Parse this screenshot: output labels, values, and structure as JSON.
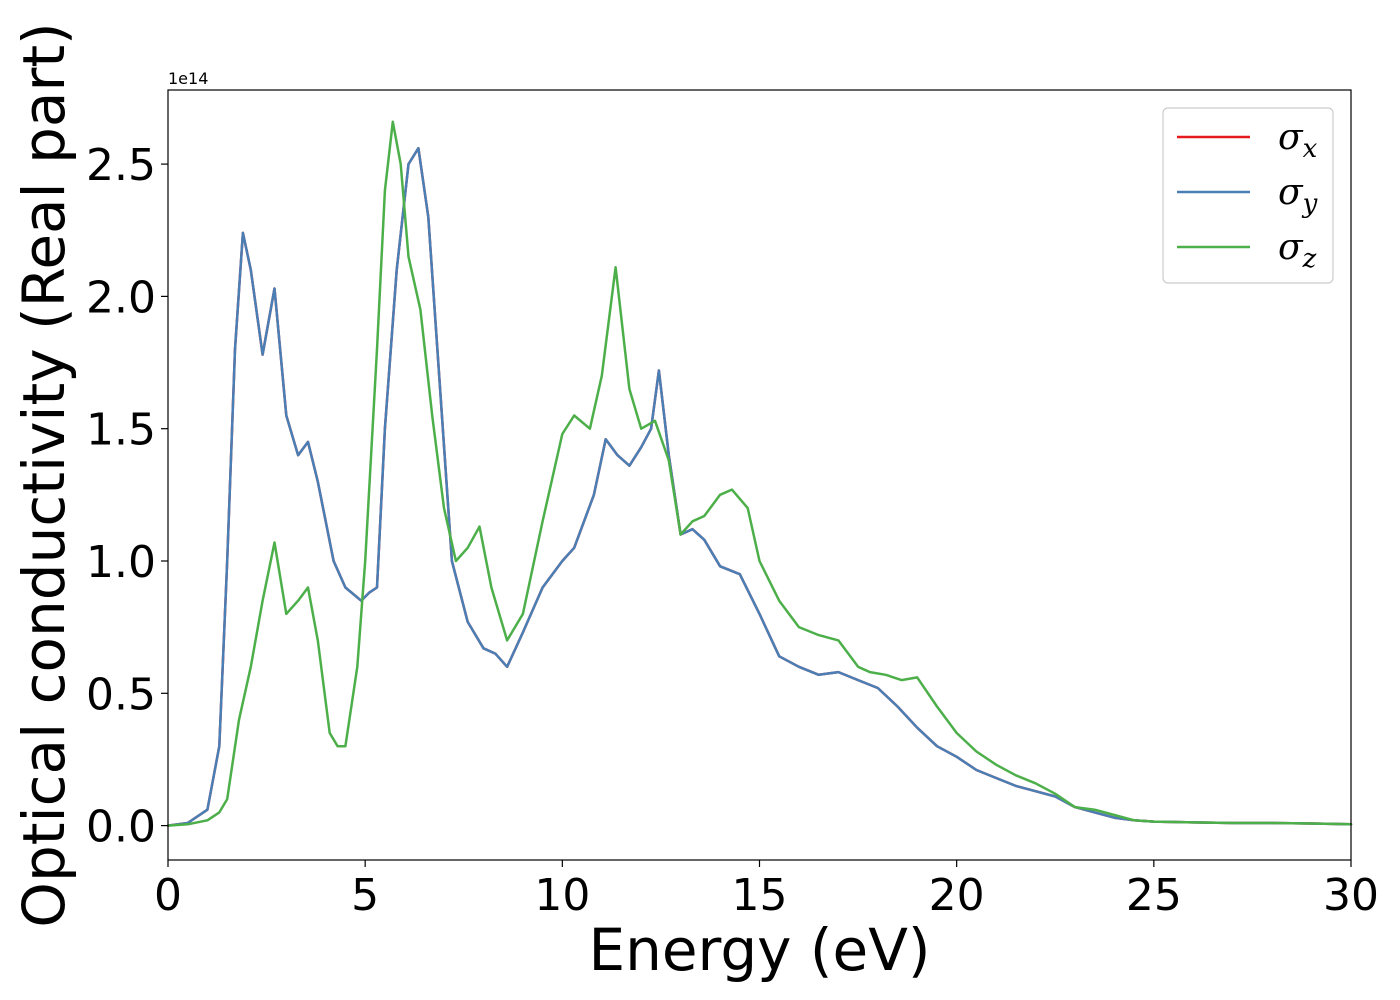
{
  "chart_data": {
    "type": "line",
    "xlabel": "Energy (eV)",
    "ylabel": "Optical conductivity (Real part)",
    "y_offset_label": "1e14",
    "xlim": [
      0,
      30
    ],
    "ylim": [
      -0.13,
      2.78
    ],
    "xticks": [
      0,
      5,
      10,
      15,
      20,
      25,
      30
    ],
    "xtick_labels": [
      "0",
      "5",
      "10",
      "15",
      "20",
      "25",
      "30"
    ],
    "yticks": [
      0.0,
      0.5,
      1.0,
      1.5,
      2.0,
      2.5
    ],
    "ytick_labels": [
      "0.0",
      "0.5",
      "1.0",
      "1.5",
      "2.0",
      "2.5"
    ],
    "grid": false,
    "legend_position": "top-right",
    "series": [
      {
        "name": "σx",
        "symbol": "σ",
        "subscript": "x",
        "color": "#e41a1c",
        "x": [
          0,
          0.5,
          1.0,
          1.3,
          1.5,
          1.7,
          1.9,
          2.1,
          2.4,
          2.7,
          3.0,
          3.3,
          3.55,
          3.8,
          4.2,
          4.5,
          4.9,
          5.1,
          5.3,
          5.5,
          5.8,
          6.1,
          6.35,
          6.6,
          6.9,
          7.2,
          7.6,
          8.0,
          8.3,
          8.6,
          9.0,
          9.5,
          10.0,
          10.3,
          10.8,
          11.1,
          11.4,
          11.7,
          12.0,
          12.25,
          12.45,
          12.7,
          13.0,
          13.3,
          13.6,
          14.0,
          14.5,
          15.0,
          15.5,
          16.0,
          16.5,
          17.0,
          17.5,
          18.0,
          18.5,
          19.0,
          19.5,
          20.0,
          20.5,
          21.0,
          21.5,
          22.0,
          22.5,
          23.0,
          23.5,
          24.0,
          24.5,
          25.0,
          26.0,
          27.0,
          28.0,
          29.0,
          30.0
        ],
        "values": [
          0.0,
          0.01,
          0.06,
          0.3,
          1.0,
          1.8,
          2.24,
          2.1,
          1.78,
          2.03,
          1.55,
          1.4,
          1.45,
          1.3,
          1.0,
          0.9,
          0.85,
          0.88,
          0.9,
          1.5,
          2.1,
          2.5,
          2.56,
          2.3,
          1.65,
          1.0,
          0.77,
          0.67,
          0.65,
          0.6,
          0.73,
          0.9,
          1.0,
          1.05,
          1.25,
          1.46,
          1.4,
          1.36,
          1.43,
          1.5,
          1.72,
          1.4,
          1.1,
          1.12,
          1.08,
          0.98,
          0.95,
          0.8,
          0.64,
          0.6,
          0.57,
          0.58,
          0.55,
          0.52,
          0.45,
          0.37,
          0.3,
          0.26,
          0.21,
          0.18,
          0.15,
          0.13,
          0.11,
          0.07,
          0.05,
          0.03,
          0.02,
          0.015,
          0.012,
          0.01,
          0.01,
          0.008,
          0.005
        ]
      },
      {
        "name": "σy",
        "symbol": "σ",
        "subscript": "y",
        "color": "#4a7fb5",
        "x": [
          0,
          0.5,
          1.0,
          1.3,
          1.5,
          1.7,
          1.9,
          2.1,
          2.4,
          2.7,
          3.0,
          3.3,
          3.55,
          3.8,
          4.2,
          4.5,
          4.9,
          5.1,
          5.3,
          5.5,
          5.8,
          6.1,
          6.35,
          6.6,
          6.9,
          7.2,
          7.6,
          8.0,
          8.3,
          8.6,
          9.0,
          9.5,
          10.0,
          10.3,
          10.8,
          11.1,
          11.4,
          11.7,
          12.0,
          12.25,
          12.45,
          12.7,
          13.0,
          13.3,
          13.6,
          14.0,
          14.5,
          15.0,
          15.5,
          16.0,
          16.5,
          17.0,
          17.5,
          18.0,
          18.5,
          19.0,
          19.5,
          20.0,
          20.5,
          21.0,
          21.5,
          22.0,
          22.5,
          23.0,
          23.5,
          24.0,
          24.5,
          25.0,
          26.0,
          27.0,
          28.0,
          29.0,
          30.0
        ],
        "values": [
          0.0,
          0.01,
          0.06,
          0.3,
          1.0,
          1.8,
          2.24,
          2.1,
          1.78,
          2.03,
          1.55,
          1.4,
          1.45,
          1.3,
          1.0,
          0.9,
          0.85,
          0.88,
          0.9,
          1.5,
          2.1,
          2.5,
          2.56,
          2.3,
          1.65,
          1.0,
          0.77,
          0.67,
          0.65,
          0.6,
          0.73,
          0.9,
          1.0,
          1.05,
          1.25,
          1.46,
          1.4,
          1.36,
          1.43,
          1.5,
          1.72,
          1.4,
          1.1,
          1.12,
          1.08,
          0.98,
          0.95,
          0.8,
          0.64,
          0.6,
          0.57,
          0.58,
          0.55,
          0.52,
          0.45,
          0.37,
          0.3,
          0.26,
          0.21,
          0.18,
          0.15,
          0.13,
          0.11,
          0.07,
          0.05,
          0.03,
          0.02,
          0.015,
          0.012,
          0.01,
          0.01,
          0.008,
          0.005
        ]
      },
      {
        "name": "σz",
        "symbol": "σ",
        "subscript": "z",
        "color": "#4daf4a",
        "x": [
          0,
          0.5,
          1.0,
          1.3,
          1.5,
          1.8,
          2.1,
          2.4,
          2.7,
          3.0,
          3.3,
          3.55,
          3.8,
          4.1,
          4.3,
          4.5,
          4.8,
          5.0,
          5.3,
          5.5,
          5.7,
          5.9,
          6.1,
          6.4,
          6.7,
          7.0,
          7.3,
          7.6,
          7.9,
          8.2,
          8.6,
          9.0,
          9.5,
          10.0,
          10.3,
          10.7,
          11.0,
          11.35,
          11.7,
          12.0,
          12.35,
          12.7,
          13.0,
          13.3,
          13.6,
          14.0,
          14.3,
          14.7,
          15.0,
          15.5,
          16.0,
          16.5,
          17.0,
          17.5,
          17.8,
          18.2,
          18.6,
          19.0,
          19.5,
          20.0,
          20.5,
          21.0,
          21.5,
          22.0,
          22.5,
          23.0,
          23.5,
          24.0,
          24.5,
          25.0,
          26.0,
          27.0,
          28.0,
          29.0,
          30.0
        ],
        "values": [
          0.0,
          0.005,
          0.02,
          0.05,
          0.1,
          0.4,
          0.6,
          0.85,
          1.07,
          0.8,
          0.85,
          0.9,
          0.7,
          0.35,
          0.3,
          0.3,
          0.6,
          1.0,
          1.8,
          2.4,
          2.66,
          2.5,
          2.15,
          1.95,
          1.55,
          1.2,
          1.0,
          1.05,
          1.13,
          0.9,
          0.7,
          0.8,
          1.15,
          1.48,
          1.55,
          1.5,
          1.7,
          2.11,
          1.65,
          1.5,
          1.53,
          1.38,
          1.1,
          1.15,
          1.17,
          1.25,
          1.27,
          1.2,
          1.0,
          0.85,
          0.75,
          0.72,
          0.7,
          0.6,
          0.58,
          0.57,
          0.55,
          0.56,
          0.45,
          0.35,
          0.28,
          0.23,
          0.19,
          0.16,
          0.12,
          0.07,
          0.06,
          0.04,
          0.02,
          0.015,
          0.012,
          0.01,
          0.01,
          0.008,
          0.005
        ]
      }
    ]
  }
}
